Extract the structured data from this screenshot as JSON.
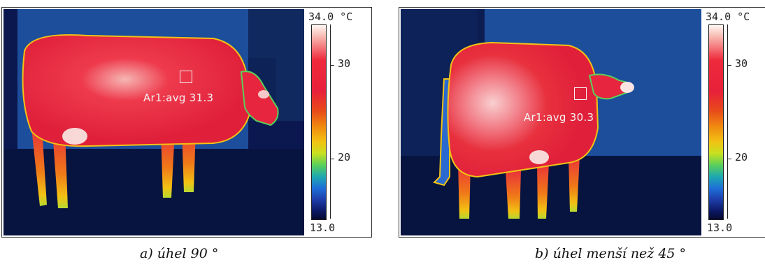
{
  "panels": [
    {
      "scale": {
        "max_label": "34.0 °C",
        "min_label": "13.0",
        "tick_30": "30",
        "tick_20": "20"
      },
      "measurement": {
        "label": "Ar1:avg 31.3"
      },
      "caption": "a) úhel 90 °"
    },
    {
      "scale": {
        "max_label": "34.0 °C",
        "min_label": "13.0",
        "tick_30": "30",
        "tick_20": "20"
      },
      "measurement": {
        "label": "Ar1:avg 30.3"
      },
      "caption": "b) úhel menší než 45 °"
    }
  ],
  "colors": {
    "background_cold": "#0a1a4a",
    "body_hot": "#e8253e",
    "body_hottest": "#f8c8c8",
    "edge_yellow": "#f2c214",
    "edge_green": "#5ad05a"
  }
}
